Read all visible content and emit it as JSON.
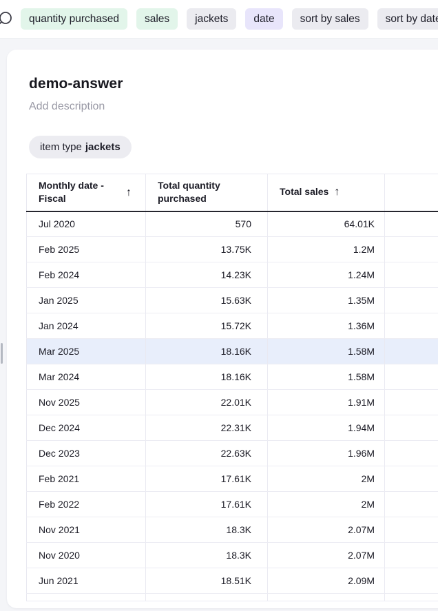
{
  "topbar": {
    "search_icon": "magnifier-icon",
    "pills": [
      {
        "label": "quantity purchased",
        "style": "green"
      },
      {
        "label": "sales",
        "style": "green"
      },
      {
        "label": "jackets",
        "style": "gray"
      },
      {
        "label": "date",
        "style": "purple"
      },
      {
        "label": "sort by sales",
        "style": "gray"
      },
      {
        "label": "sort by date",
        "style": "gray"
      }
    ]
  },
  "card": {
    "title": "demo-answer",
    "description_placeholder": "Add description",
    "filter_chip": {
      "prefix": "item type",
      "value": "jackets"
    }
  },
  "table": {
    "columns": [
      {
        "label": "Monthly date - Fiscal",
        "sort_icon": "↑"
      },
      {
        "label": "Total quantity purchased",
        "sort_icon": ""
      },
      {
        "label": "Total sales",
        "sort_icon": "↑"
      },
      {
        "label": ""
      }
    ],
    "rows": [
      {
        "date": "Jul 2020",
        "quantity": "570",
        "sales": "64.01K",
        "highlighted": false
      },
      {
        "date": "Feb 2025",
        "quantity": "13.75K",
        "sales": "1.2M",
        "highlighted": false
      },
      {
        "date": "Feb 2024",
        "quantity": "14.23K",
        "sales": "1.24M",
        "highlighted": false
      },
      {
        "date": "Jan 2025",
        "quantity": "15.63K",
        "sales": "1.35M",
        "highlighted": false
      },
      {
        "date": "Jan 2024",
        "quantity": "15.72K",
        "sales": "1.36M",
        "highlighted": false
      },
      {
        "date": "Mar 2025",
        "quantity": "18.16K",
        "sales": "1.58M",
        "highlighted": true
      },
      {
        "date": "Mar 2024",
        "quantity": "18.16K",
        "sales": "1.58M",
        "highlighted": false
      },
      {
        "date": "Nov 2025",
        "quantity": "22.01K",
        "sales": "1.91M",
        "highlighted": false
      },
      {
        "date": "Dec 2024",
        "quantity": "22.31K",
        "sales": "1.94M",
        "highlighted": false
      },
      {
        "date": "Dec 2023",
        "quantity": "22.63K",
        "sales": "1.96M",
        "highlighted": false
      },
      {
        "date": "Feb 2021",
        "quantity": "17.61K",
        "sales": "2M",
        "highlighted": false
      },
      {
        "date": "Feb 2022",
        "quantity": "17.61K",
        "sales": "2M",
        "highlighted": false
      },
      {
        "date": "Nov 2021",
        "quantity": "18.3K",
        "sales": "2.07M",
        "highlighted": false
      },
      {
        "date": "Nov 2020",
        "quantity": "18.3K",
        "sales": "2.07M",
        "highlighted": false
      },
      {
        "date": "Jun 2021",
        "quantity": "18.51K",
        "sales": "2.09M",
        "highlighted": false
      }
    ]
  },
  "colors": {
    "page_bg": "#f4f5f8",
    "pill_green": "#e2f5ea",
    "pill_gray": "#ebebf0",
    "pill_purple": "#e8e5fb",
    "row_highlight": "#e8eefb",
    "header_underline": "#26262e",
    "grid_line": "#e9e9f1"
  }
}
